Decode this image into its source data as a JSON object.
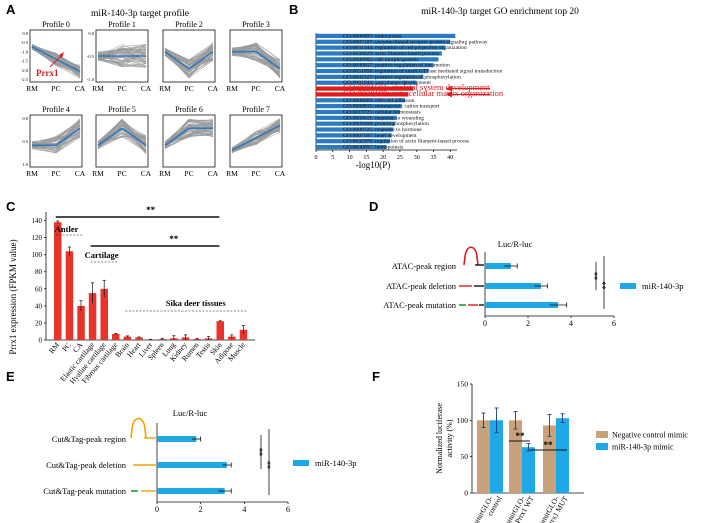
{
  "panels": {
    "A": {
      "letter": "A",
      "title": "miR-140-3p target profile",
      "profiles": [
        {
          "label": "Profile 0",
          "trend": [
            0.0,
            -1.0,
            -2.0
          ]
        },
        {
          "label": "Profile 1",
          "trend": [
            0.0,
            0.0,
            0.0
          ]
        },
        {
          "label": "Profile 2",
          "trend": [
            0.0,
            -1.0,
            0.0
          ]
        },
        {
          "label": "Profile 3",
          "trend": [
            0.0,
            0.0,
            -1.0
          ]
        },
        {
          "label": "Profile 4",
          "trend": [
            0.0,
            0.0,
            1.0
          ]
        },
        {
          "label": "Profile 5",
          "trend": [
            0.0,
            1.0,
            0.0
          ]
        },
        {
          "label": "Profile 6",
          "trend": [
            0.0,
            1.0,
            1.0
          ]
        },
        {
          "label": "Profile 7",
          "trend": [
            0.0,
            1.0,
            2.0
          ]
        }
      ],
      "xticks": [
        "RM",
        "PC",
        "CA"
      ],
      "yticks0": [
        "0.0",
        "-0.5",
        "-1.0",
        "-1.5",
        "-2.0",
        "-2.5"
      ],
      "yticks_small": [
        "0.0",
        "-0.5",
        "-1.0"
      ],
      "yticks4": [
        "0.0",
        "0.5",
        "1.0"
      ],
      "annotation": "Prrx1"
    },
    "B": {
      "letter": "B",
      "title": "miR-140-3p target GO enrichment top 20",
      "xlabel": "-log10(P)",
      "xticks": [
        "0",
        "5",
        "10",
        "15",
        "20",
        "25",
        "30",
        "35",
        "40"
      ],
      "chart_data": {
        "type": "bar",
        "orientation": "horizontal",
        "title": "miR-140-3p target GO enrichment top 20",
        "xlabel": "-log10(P)",
        "xlim": [
          0,
          42
        ],
        "categories": [
          "GO:0006897: endocytosis",
          "GO:0007167: enzyme-linked receptor protein signaling pathway",
          "GO:0031344: regulation of cell projection organization",
          "GO:0030029: actin filament-based process",
          "GO:0000902: cell morphogenesis",
          "GO:0040017: positive regulation of locomotion",
          "GO:0051056: regulation of small GTPase mediated signal transduction",
          "GO:0042327: positive regulation of phosphorylation",
          "GO:0001944: vasculature development",
          "GO:0001501: skeletal system development",
          "GO:0030198: extracellular matrix organization",
          "GO:0008609: cell-cell adhesion",
          "GO:0060815: monoatomic cation transport",
          "GO:0019725: cellular homeostasis",
          "GO:0009611: response to wounding",
          "GO:0009408: protein phosphorylation",
          "GO:0009725: response to hormone",
          "GO:0007507: heart development",
          "GO:0032970: regulation of actin filament-based process",
          "GO:0030097: hemopoiesis"
        ],
        "values": [
          41.5,
          40.0,
          38.5,
          37.5,
          36.5,
          35.0,
          33.5,
          32.0,
          30.0,
          29.0,
          27.5,
          26.5,
          25.5,
          25.0,
          24.0,
          23.5,
          23.0,
          22.5,
          22.0,
          21.0
        ],
        "highlighted": [
          "GO:0001501: skeletal system development",
          "GO:0030198: extracellular matrix organization"
        ],
        "bar_color": "#2c7bbf",
        "highlight_color": "#e01b1b"
      }
    },
    "C": {
      "letter": "C",
      "ylabel": "Prrx1 expression (FPKM value)",
      "yticks": [
        "0",
        "20",
        "40",
        "60",
        "80",
        "100",
        "120",
        "140"
      ],
      "group_labels": [
        "Antler",
        "Cartilage",
        "Sika deer tissues"
      ],
      "sig": "**",
      "chart_data": {
        "type": "bar",
        "ylabel": "Prrx1 expression (FPKM value)",
        "ylim": [
          0,
          150
        ],
        "categories": [
          "RM",
          "PC",
          "CA",
          "Elastic cartilage",
          "Hyaline cartilage",
          "Fibrous cartilage",
          "Brain",
          "Heart",
          "Liver",
          "Spleen",
          "Lung",
          "Kidney",
          "Rumen",
          "Testis",
          "Skin",
          "Adipose",
          "Muscle"
        ],
        "values": [
          138,
          104,
          40,
          55,
          60,
          7,
          4,
          3,
          0.5,
          1,
          2,
          3,
          1,
          2,
          22,
          4,
          12
        ],
        "errors": [
          1.5,
          5,
          6,
          12,
          10,
          0.8,
          0.8,
          0.6,
          0.3,
          1,
          3,
          3,
          1,
          2,
          0.5,
          2,
          5
        ],
        "bar_color": "#e8352b"
      }
    },
    "D": {
      "letter": "D",
      "title": "Luc/R-luc",
      "legend": "miR-140-3p",
      "xticks": [
        "0",
        "2",
        "4",
        "6"
      ],
      "sig": "**",
      "chart_data": {
        "type": "bar",
        "orientation": "horizontal",
        "title": "Luc/R-luc",
        "xlim": [
          0,
          6
        ],
        "categories": [
          "ATAC-peak region",
          "ATAC-peak deletion",
          "ATAC-peak mutation"
        ],
        "values": [
          1.2,
          2.6,
          3.4
        ],
        "errors": [
          0.3,
          0.3,
          0.4
        ],
        "bar_color": "#1fa8e6"
      }
    },
    "E": {
      "letter": "E",
      "title": "Luc/R-luc",
      "legend": "miR-140-3p",
      "xticks": [
        "0",
        "2",
        "4",
        "6"
      ],
      "sig": "**",
      "chart_data": {
        "type": "bar",
        "orientation": "horizontal",
        "title": "Luc/R-luc",
        "xlim": [
          0,
          6
        ],
        "categories": [
          "Cut&Tag-peak region",
          "Cut&Tag-peak deletion",
          "Cut&Tag-peak mutation"
        ],
        "values": [
          1.8,
          3.2,
          3.1
        ],
        "errors": [
          0.2,
          0.2,
          0.3
        ],
        "bar_color": "#1fa8e6"
      }
    },
    "F": {
      "letter": "F",
      "ylabel_line1": "Normalized luciferase",
      "ylabel_line2": "activity (%)",
      "yticks": [
        "0",
        "50",
        "100",
        "150"
      ],
      "sig": "**",
      "xlabels": [
        [
          "pmirGLO-",
          "control"
        ],
        [
          "pmirGLO-",
          "Prrx1 WT"
        ],
        [
          "pmirGLO-",
          "Prrx1 MUT"
        ]
      ],
      "chart_data": {
        "type": "bar",
        "ylabel": "Normalized luciferase activity (%)",
        "ylim": [
          0,
          150
        ],
        "categories": [
          "pmirGLO-control",
          "pmirGLO-Prrx1 WT",
          "pmirGLO-Prrx1 MUT"
        ],
        "series": [
          {
            "name": "Negative control mimic",
            "values": [
              100,
              100,
              93
            ],
            "errors": [
              10,
              12,
              15
            ],
            "color": "#c8a27a"
          },
          {
            "name": "miR-140-3p mimic",
            "values": [
              100,
              63,
              103
            ],
            "errors": [
              17,
              5,
              6
            ],
            "color": "#1fa8e6"
          }
        ]
      }
    }
  }
}
